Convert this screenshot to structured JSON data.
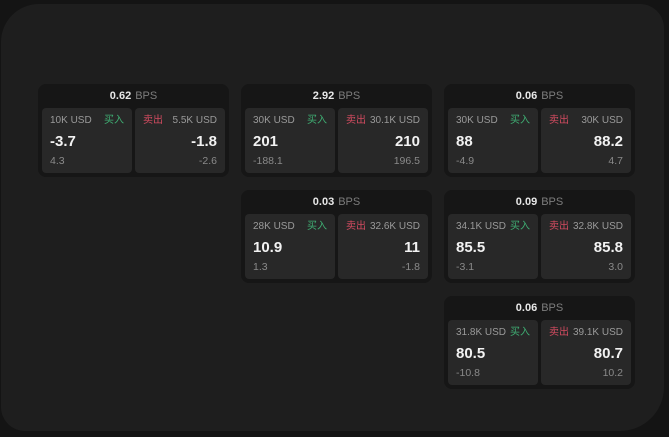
{
  "labels": {
    "buy": "买入",
    "sell": "卖出",
    "bps": "BPS"
  },
  "colors": {
    "buy_green": "#3fae73",
    "sell_red": "#d24b60",
    "panel_background": "#1e1e1e",
    "card_background": "#161616",
    "tile_background": "#282828"
  },
  "cards": [
    {
      "bps": "0.62",
      "buy": {
        "size": "10K USD",
        "value": "-3.7",
        "sub": "4.3"
      },
      "sell": {
        "size": "5.5K USD",
        "value": "-1.8",
        "sub": "-2.6"
      }
    },
    {
      "bps": "2.92",
      "buy": {
        "size": "30K USD",
        "value": "201",
        "sub": "-188.1"
      },
      "sell": {
        "size": "30.1K USD",
        "value": "210",
        "sub": "196.5"
      }
    },
    {
      "bps": "0.06",
      "buy": {
        "size": "30K USD",
        "value": "88",
        "sub": "-4.9"
      },
      "sell": {
        "size": "30K USD",
        "value": "88.2",
        "sub": "4.7"
      }
    },
    {
      "bps": "0.03",
      "buy": {
        "size": "28K USD",
        "value": "10.9",
        "sub": "1.3"
      },
      "sell": {
        "size": "32.6K USD",
        "value": "11",
        "sub": "-1.8"
      }
    },
    {
      "bps": "0.09",
      "buy": {
        "size": "34.1K USD",
        "value": "85.5",
        "sub": "-3.1"
      },
      "sell": {
        "size": "32.8K USD",
        "value": "85.8",
        "sub": "3.0"
      }
    },
    {
      "bps": "0.06",
      "buy": {
        "size": "31.8K USD",
        "value": "80.5",
        "sub": "-10.8"
      },
      "sell": {
        "size": "39.1K USD",
        "value": "80.7",
        "sub": "10.2"
      }
    }
  ]
}
